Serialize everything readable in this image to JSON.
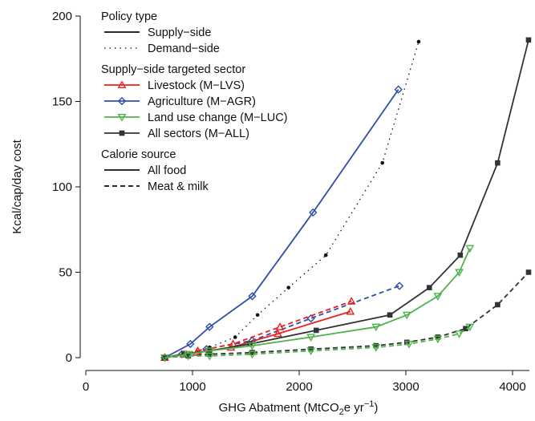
{
  "chart_data": {
    "type": "line",
    "xlabel": "GHG Abatment  (MtCO",
    "xlabel_sub": "2",
    "xlabel_rest": "e yr",
    "xlabel_sup": "−1",
    "xlabel_close": ")",
    "ylabel": "Kcal/cap/day cost",
    "xlim": [
      0,
      4150
    ],
    "ylim": [
      0,
      200
    ],
    "xticks": [
      0,
      1000,
      2000,
      3000,
      4000
    ],
    "yticks": [
      0,
      50,
      100,
      150,
      200
    ],
    "legend": {
      "position": "top-left",
      "policy_title": "Policy type",
      "policy_entries": [
        {
          "label": "Supply−side",
          "style": "solid"
        },
        {
          "label": "Demand−side",
          "style": "dotted"
        }
      ],
      "sector_title": "Supply−side targeted sector",
      "sector_entries": [
        {
          "label": "Livestock (M−LVS)",
          "color": "#e8211d",
          "marker": "triangle-up"
        },
        {
          "label": "Agriculture (M−AGR)",
          "color": "#2f4ea6",
          "marker": "diamond"
        },
        {
          "label": "Land use change (M−LUC)",
          "color": "#4db34a",
          "marker": "triangle-down"
        },
        {
          "label": "All sectors (M−ALL)",
          "color": "#333333",
          "marker": "square"
        }
      ],
      "calorie_title": "Calorie source",
      "calorie_entries": [
        {
          "label": "All food",
          "style": "solid"
        },
        {
          "label": "Meat & milk",
          "style": "dashed"
        }
      ]
    },
    "series": [
      {
        "name": "Demand−side",
        "color": "#111111",
        "style": "dotted",
        "marker": "dot",
        "x": [
          740,
          940,
          1160,
          1400,
          1610,
          1900,
          2250,
          2780,
          3120
        ],
        "y": [
          0,
          2,
          6,
          12,
          25,
          41,
          60,
          114,
          185
        ]
      },
      {
        "name": "Agriculture (M−AGR)",
        "color": "#2f4ea6",
        "style": "solid",
        "marker": "diamond",
        "x": [
          740,
          980,
          1160,
          1560,
          2130,
          2930
        ],
        "y": [
          0,
          8,
          18,
          36,
          85,
          157
        ]
      },
      {
        "name": "Agriculture (M−AGR)",
        "color": "#2f4ea6",
        "style": "dashed",
        "marker": "diamond",
        "x": [
          740,
          900,
          1130,
          1560,
          2110,
          2940
        ],
        "y": [
          0,
          2,
          5,
          10,
          23,
          42
        ]
      },
      {
        "name": "Livestock (M−LVS)",
        "color": "#e8211d",
        "style": "dashed",
        "marker": "triangle-up",
        "x": [
          740,
          940,
          1050,
          1380,
          1820,
          2490
        ],
        "y": [
          0,
          2,
          4,
          8,
          18,
          33
        ]
      },
      {
        "name": "Livestock (M−LVS)",
        "color": "#e8211d",
        "style": "solid",
        "marker": "triangle-up",
        "x": [
          740,
          920,
          1040,
          1360,
          1800,
          2480
        ],
        "y": [
          0,
          2,
          3,
          6,
          14,
          27
        ]
      },
      {
        "name": "All sectors (M−ALL)",
        "color": "#333333",
        "style": "solid",
        "marker": "square",
        "x": [
          740,
          920,
          1160,
          1540,
          2160,
          2850,
          3220,
          3510,
          3860,
          4150
        ],
        "y": [
          0,
          2,
          4,
          8,
          16,
          25,
          41,
          60,
          114,
          186
        ]
      },
      {
        "name": "Land use change (M−LUC)",
        "color": "#4db34a",
        "style": "solid",
        "marker": "triangle-down",
        "x": [
          740,
          960,
          1160,
          1560,
          2110,
          2720,
          3010,
          3300,
          3500,
          3600
        ],
        "y": [
          0,
          2,
          4,
          7,
          12,
          18,
          25,
          36,
          50,
          64
        ]
      },
      {
        "name": "All sectors (M−ALL)",
        "color": "#333333",
        "style": "dashed",
        "marker": "square",
        "x": [
          740,
          960,
          1160,
          1560,
          2110,
          2720,
          3010,
          3300,
          3560,
          3860,
          4150
        ],
        "y": [
          0,
          1,
          2,
          3,
          5,
          7,
          9,
          12,
          17,
          31,
          50
        ]
      },
      {
        "name": "Land use change (M−LUC)",
        "color": "#4db34a",
        "style": "dashed",
        "marker": "triangle-down",
        "x": [
          740,
          960,
          1160,
          1560,
          2110,
          2720,
          3030,
          3300,
          3500,
          3600
        ],
        "y": [
          0,
          1,
          1,
          2,
          4,
          6,
          8,
          11,
          14,
          18
        ]
      }
    ]
  }
}
